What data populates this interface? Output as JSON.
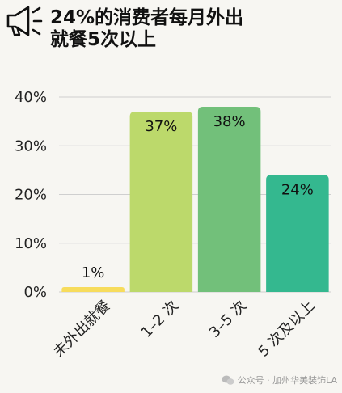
{
  "title": "24%的消费者每月外出\n就餐5次以上",
  "icons": {
    "header": "megaphone-icon",
    "watermark": "wechat-icon"
  },
  "watermark": {
    "text": "公众号 · 加州华美装饰LA"
  },
  "chart_data": {
    "type": "bar",
    "title": "24%的消费者每月外出就餐5次以上",
    "categories": [
      "未外出就餐",
      "1–2 次",
      "3–5 次",
      "5 次及以上"
    ],
    "values": [
      1,
      37,
      38,
      24
    ],
    "value_labels": [
      "1%",
      "37%",
      "38%",
      "24%"
    ],
    "colors": [
      "#f7dc5c",
      "#bcd96b",
      "#72c07a",
      "#34b88f"
    ],
    "ylim": [
      0,
      40
    ],
    "yticks": [
      0,
      10,
      20,
      30,
      40
    ],
    "ytick_labels": [
      "0%",
      "10%",
      "20%",
      "30%",
      "40%"
    ],
    "xlabel": "",
    "ylabel": "",
    "grid": true
  }
}
